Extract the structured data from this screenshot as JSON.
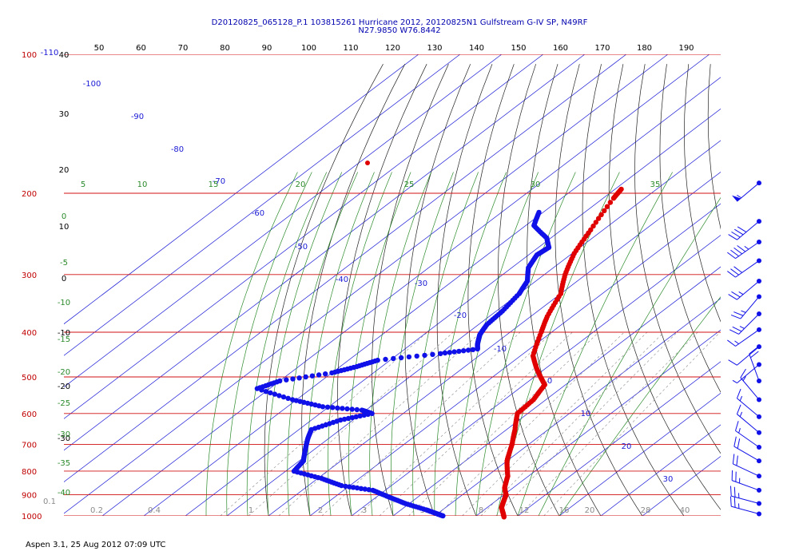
{
  "header": {
    "line1": "D20120825_065128_P.1 103815261 Hurricane 2012, 20120825N1 Gulfstream G-IV SP, N49RF",
    "line2": "N27.9850 W76.8442"
  },
  "footer": "Aspen 3.1, 25 Aug 2012  07:09 UTC",
  "chart_data": {
    "type": "skew-t log-p",
    "pressure_levels": [
      100,
      200,
      300,
      400,
      500,
      600,
      700,
      800,
      900,
      1000
    ],
    "top_tick_labels": [
      "50",
      "60",
      "70",
      "80",
      "90",
      "100",
      "110",
      "120",
      "130",
      "140",
      "150",
      "160",
      "170",
      "180",
      "190"
    ],
    "left_black_labels": [
      "40",
      "30",
      "20",
      "10",
      "0",
      "-10",
      "-20",
      "-30"
    ],
    "left_green_labels": [
      "0",
      "-5",
      "-10",
      "-15",
      "-20",
      "-25",
      "-30",
      "-35",
      "-40"
    ],
    "top_left_label": "-110",
    "mixing_ratio_labels": [
      "0.1",
      "0.2",
      "0.4",
      "1",
      "2",
      "3",
      "5",
      "8",
      "12",
      "16",
      "20",
      "28",
      "40"
    ],
    "blue_isotherm_labels": [
      "-100",
      "-90",
      "-80",
      "-70",
      "-60",
      "-50",
      "-40",
      "-30",
      "-20",
      "-10",
      "0",
      "10",
      "20",
      "30"
    ],
    "green_adiabat_labels": [
      "5",
      "10",
      "15",
      "20",
      "25",
      "30",
      "35"
    ],
    "temperature": {
      "p": [
        196,
        205,
        240,
        270,
        300,
        330,
        370,
        400,
        450,
        480,
        500,
        520,
        560,
        600,
        650,
        700,
        760,
        820,
        870,
        900,
        930,
        960,
        985,
        1005
      ],
      "t": [
        -48.5,
        -47.5,
        -43,
        -39.5,
        -35,
        -30,
        -26,
        -22.5,
        -17,
        -12,
        -8.5,
        -5,
        -3,
        -2.5,
        2,
        6,
        10,
        15,
        18,
        20.5,
        22,
        23.5,
        25.5,
        27
      ]
    },
    "dewpoint": {
      "p": [
        220,
        235,
        250,
        262,
        272,
        290,
        310,
        330,
        360,
        385,
        405,
        425,
        435,
        445,
        460,
        475,
        490,
        510,
        530,
        560,
        580,
        590,
        600,
        620,
        650,
        680,
        720,
        760,
        800,
        830,
        860,
        880,
        910,
        940,
        970,
        990,
        1000
      ],
      "td": [
        -61,
        -58,
        -51,
        -47.5,
        -48,
        -46,
        -42,
        -40,
        -38.5,
        -38,
        -36.5,
        -34,
        -32.5,
        -40,
        -53,
        -56,
        -60,
        -70,
        -73,
        -61,
        -51.5,
        -41,
        -37.5,
        -43,
        -47,
        -45,
        -42,
        -39,
        -38,
        -29,
        -22,
        -13,
        -7,
        -1,
        6,
        10,
        12
      ]
    },
    "winds": [
      {
        "p": 190,
        "speed_kt": 55,
        "dir": 230
      },
      {
        "p": 230,
        "speed_kt": 40,
        "dir": 230
      },
      {
        "p": 255,
        "speed_kt": 45,
        "dir": 235
      },
      {
        "p": 280,
        "speed_kt": 30,
        "dir": 235
      },
      {
        "p": 310,
        "speed_kt": 25,
        "dir": 230
      },
      {
        "p": 335,
        "speed_kt": 25,
        "dir": 220
      },
      {
        "p": 365,
        "speed_kt": 25,
        "dir": 225
      },
      {
        "p": 395,
        "speed_kt": 15,
        "dir": 235
      },
      {
        "p": 430,
        "speed_kt": 10,
        "dir": 230
      },
      {
        "p": 470,
        "speed_kt": 5,
        "dir": 230
      },
      {
        "p": 510,
        "speed_kt": 20,
        "dir": 340
      },
      {
        "p": 560,
        "speed_kt": 15,
        "dir": 320
      },
      {
        "p": 610,
        "speed_kt": 15,
        "dir": 310
      },
      {
        "p": 660,
        "speed_kt": 15,
        "dir": 310
      },
      {
        "p": 710,
        "speed_kt": 15,
        "dir": 305
      },
      {
        "p": 760,
        "speed_kt": 20,
        "dir": 300
      },
      {
        "p": 820,
        "speed_kt": 20,
        "dir": 295
      },
      {
        "p": 880,
        "speed_kt": 25,
        "dir": 290
      },
      {
        "p": 940,
        "speed_kt": 25,
        "dir": 285
      },
      {
        "p": 990,
        "speed_kt": 25,
        "dir": 285
      }
    ]
  }
}
